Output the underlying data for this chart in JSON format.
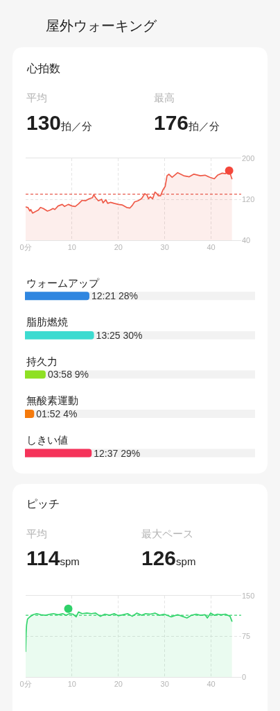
{
  "chart_data": [
    {
      "type": "area",
      "title": "心拍数",
      "annotations": [
        "屋外ウォーキング",
        "平均",
        "130拍／分",
        "最高",
        "176拍／分"
      ],
      "x": [
        0,
        0.5,
        0.9,
        1.1,
        1.5,
        2.1,
        2.75,
        3.2,
        3.8,
        4.7,
        5.3,
        5.9,
        6.3,
        7.0,
        7.9,
        8.4,
        9.2,
        10,
        10.7,
        11.4,
        12.2,
        12.9,
        13.7,
        14.4,
        14.7,
        15.1,
        15.7,
        16.4,
        16.7,
        17.3,
        17.7,
        18.3,
        19.1,
        20.0,
        20.8,
        21.8,
        22.5,
        23.0,
        23.5,
        24.2,
        25.0,
        25.7,
        26.2,
        26.5,
        26.9,
        27.4,
        27.9,
        28.3,
        28.6,
        29.1,
        29.6,
        30.1,
        30.5,
        30.9,
        31.6,
        32.8,
        34.1,
        35.3,
        36.3,
        37.7,
        38.7,
        39.7,
        40.7,
        41.4,
        42.4,
        43.1,
        43.9,
        44.5
      ],
      "series": [
        {
          "color": "#ef5a48",
          "values": [
            105,
            104,
            97,
            100,
            93,
            96,
            99,
            104,
            102,
            97,
            99,
            102,
            100,
            107,
            110,
            106,
            110,
            107,
            106,
            111,
            118,
            117,
            121,
            123,
            129,
            123,
            117,
            120,
            113,
            119,
            112,
            114,
            112,
            110,
            109,
            104,
            103,
            108,
            115,
            117,
            121,
            131,
            128,
            121,
            125,
            121,
            134,
            131,
            127,
            127,
            138,
            145,
            166,
            169,
            163,
            172,
            166,
            164,
            169,
            166,
            167,
            163,
            160,
            167,
            171,
            170,
            176,
            160
          ]
        },
        {
          "type": "scatter",
          "marker": "circle",
          "color": "#f4473b",
          "x": [
            43.9
          ],
          "values": [
            176
          ]
        }
      ],
      "xlim": [
        0,
        46.5
      ],
      "xticks": [
        {
          "value": 0,
          "label": "0分"
        },
        10,
        20,
        30,
        40
      ],
      "ylim": [
        40,
        200
      ],
      "yticks": [
        40,
        120,
        200
      ],
      "ref_lines": [
        {
          "axis": "y",
          "value": 130,
          "color": "#e85a4c",
          "line_style": "dashed"
        }
      ],
      "grid": true
    },
    {
      "type": "bar",
      "orientation": "horizontal",
      "categories": [
        "ウォームアップ",
        "脂肪燃焼",
        "持久力",
        "無酸素運動",
        "しきい値"
      ],
      "series": [
        {
          "colors": [
            "#2f86e0",
            "#3ddbd0",
            "#8ee023",
            "#f57a0c",
            "#f5335a"
          ],
          "values": [
            28,
            30,
            9,
            4,
            29
          ],
          "value_labels": [
            "12:21 28%",
            "13:25 30%",
            "03:58 9%",
            "01:52 4%",
            "12:37 29%"
          ]
        }
      ]
    },
    {
      "type": "area",
      "title": "ピッチ",
      "annotations": [
        "平均",
        "114spm",
        "最大ペース",
        "126spm"
      ],
      "x": [
        0,
        0.1,
        0.2,
        0.4,
        0.9,
        1.6,
        2.4,
        3.3,
        4.3,
        5.3,
        6.0,
        7.0,
        8.0,
        8.7,
        9.5,
        10.2,
        10.9,
        11.4,
        12.2,
        13.2,
        14.2,
        15.1,
        16.1,
        17.1,
        18.1,
        19.1,
        20,
        21,
        22,
        23,
        24,
        25,
        25.9,
        26.9,
        27.9,
        28.9,
        29.9,
        31.4,
        32.8,
        33.8,
        34.8,
        35.8,
        36.8,
        37.7,
        38.7,
        39.2,
        39.9,
        40.7,
        41.4,
        42.2,
        43.1,
        44.1,
        44.5
      ],
      "series": [
        {
          "color": "#33d46c",
          "values": [
            47,
            81,
            96,
            107,
            111,
            115,
            117,
            115,
            114,
            116,
            117,
            115,
            117,
            114,
            117,
            116,
            111,
            120,
            117,
            118,
            117,
            118,
            112,
            116,
            114,
            117,
            113,
            115,
            117,
            112,
            118,
            114,
            117,
            116,
            118,
            114,
            116,
            111,
            115,
            112,
            109,
            114,
            116,
            114,
            115,
            109,
            118,
            114,
            116,
            115,
            116,
            112,
            103
          ]
        },
        {
          "type": "scatter",
          "marker": "circle",
          "color": "#2fd169",
          "x": [
            9.2
          ],
          "values": [
            126
          ]
        }
      ],
      "xlim": [
        0,
        46.5
      ],
      "xticks": [
        {
          "value": 0,
          "label": "0分"
        },
        10,
        20,
        30,
        40
      ],
      "ylim": [
        0,
        150
      ],
      "yticks": [
        0,
        75,
        150
      ],
      "ref_lines": [
        {
          "axis": "y",
          "value": 114,
          "color": "#33d46c",
          "line_style": "dashed"
        }
      ],
      "grid": true
    }
  ]
}
